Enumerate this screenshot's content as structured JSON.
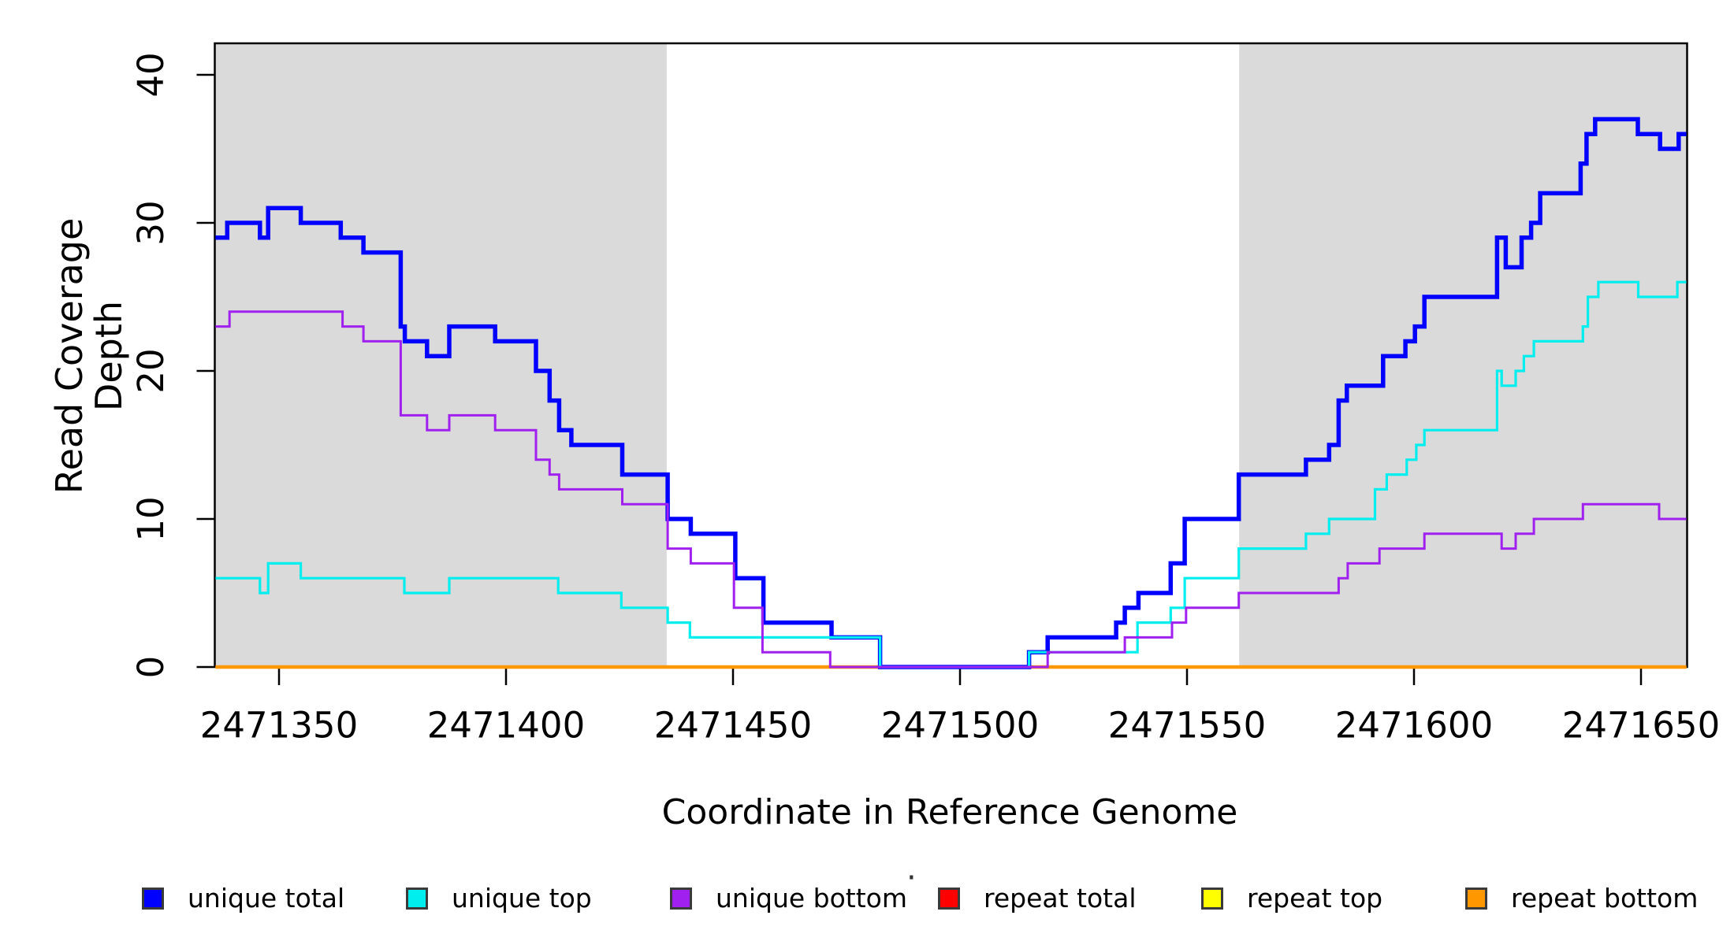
{
  "chart_data": {
    "type": "line",
    "subtype": "step-after",
    "xlabel": "Coordinate in Reference Genome",
    "ylabel": "Read Coverage Depth",
    "stray_dot": "·",
    "xlim": [
      2471336,
      2471660
    ],
    "ylim": [
      0,
      42
    ],
    "grid": false,
    "legend_position": "bottom",
    "x_ticks": [
      {
        "value": 2471350,
        "label": "2471350"
      },
      {
        "value": 2471400,
        "label": "2471400"
      },
      {
        "value": 2471450,
        "label": "2471450"
      },
      {
        "value": 2471500,
        "label": "2471500"
      },
      {
        "value": 2471550,
        "label": "2471550"
      },
      {
        "value": 2471600,
        "label": "2471600"
      },
      {
        "value": 2471650,
        "label": "2471650"
      }
    ],
    "y_ticks": [
      {
        "value": 0,
        "label": "0"
      },
      {
        "value": 10,
        "label": "10"
      },
      {
        "value": 20,
        "label": "20"
      },
      {
        "value": 30,
        "label": "30"
      },
      {
        "value": 40,
        "label": "40"
      }
    ],
    "shaded_regions": [
      {
        "x1": 2471336.0,
        "x2": 2471435.4,
        "color": "#DADADA"
      },
      {
        "x1": 2471561.5,
        "x2": 2471660.0,
        "color": "#DADADA"
      }
    ],
    "series": [
      {
        "name": "unique total",
        "color": "#0000FF",
        "width": 5.5,
        "points": [
          [
            2471336,
            29
          ],
          [
            2471338.6,
            30
          ],
          [
            2471345.8,
            29
          ],
          [
            2471347.6,
            31
          ],
          [
            2471354.8,
            30
          ],
          [
            2471363.6,
            29
          ],
          [
            2471368.6,
            28
          ],
          [
            2471376.8,
            23
          ],
          [
            2471377.7,
            22
          ],
          [
            2471382.6,
            21
          ],
          [
            2471387.5,
            23
          ],
          [
            2471397.6,
            22
          ],
          [
            2471406.6,
            20
          ],
          [
            2471409.6,
            18
          ],
          [
            2471411.7,
            16
          ],
          [
            2471414.4,
            15
          ],
          [
            2471425.6,
            13
          ],
          [
            2471435.6,
            10
          ],
          [
            2471440.7,
            9
          ],
          [
            2471450.5,
            6
          ],
          [
            2471456.7,
            3
          ],
          [
            2471471.7,
            2
          ],
          [
            2471482.4,
            0
          ],
          [
            2471515.2,
            1
          ],
          [
            2471519.3,
            2
          ],
          [
            2471534.4,
            3
          ],
          [
            2471536.3,
            4
          ],
          [
            2471539.3,
            5
          ],
          [
            2471546.4,
            7
          ],
          [
            2471549.5,
            10
          ],
          [
            2471561.4,
            13
          ],
          [
            2471576.2,
            14
          ],
          [
            2471581.3,
            15
          ],
          [
            2471583.4,
            18
          ],
          [
            2471585.2,
            19
          ],
          [
            2471593.2,
            21
          ],
          [
            2471598.1,
            22
          ],
          [
            2471600.2,
            23
          ],
          [
            2471602.3,
            25
          ],
          [
            2471618.3,
            29
          ],
          [
            2471620.2,
            27
          ],
          [
            2471623.7,
            29
          ],
          [
            2471625.8,
            30
          ],
          [
            2471627.8,
            32
          ],
          [
            2471636.7,
            34
          ],
          [
            2471638,
            36
          ],
          [
            2471639.9,
            37
          ],
          [
            2471649.3,
            36
          ],
          [
            2471654.2,
            35
          ],
          [
            2471658.3,
            36
          ]
        ]
      },
      {
        "name": "unique top",
        "color": "#00EEEE",
        "width": 3.2,
        "points": [
          [
            2471336,
            6
          ],
          [
            2471345.8,
            5
          ],
          [
            2471347.6,
            7
          ],
          [
            2471354.8,
            6
          ],
          [
            2471377.6,
            5
          ],
          [
            2471387.5,
            6
          ],
          [
            2471411.5,
            5
          ],
          [
            2471425.4,
            4
          ],
          [
            2471435.6,
            3
          ],
          [
            2471440.5,
            2
          ],
          [
            2471482.4,
            0
          ],
          [
            2471515.2,
            1
          ],
          [
            2471539.1,
            3
          ],
          [
            2471546.4,
            4
          ],
          [
            2471549.5,
            6
          ],
          [
            2471561.4,
            8
          ],
          [
            2471576.2,
            9
          ],
          [
            2471581.3,
            10
          ],
          [
            2471591.4,
            12
          ],
          [
            2471594,
            13
          ],
          [
            2471598.4,
            14
          ],
          [
            2471600.5,
            15
          ],
          [
            2471602.3,
            16
          ],
          [
            2471618.3,
            20
          ],
          [
            2471619.3,
            19
          ],
          [
            2471622.4,
            20
          ],
          [
            2471624.2,
            21
          ],
          [
            2471626.4,
            22
          ],
          [
            2471637.2,
            23
          ],
          [
            2471638.3,
            25
          ],
          [
            2471640.6,
            26
          ],
          [
            2471649.4,
            25
          ],
          [
            2471658,
            26
          ]
        ]
      },
      {
        "name": "unique bottom",
        "color": "#A020F0",
        "width": 3,
        "points": [
          [
            2471336,
            23
          ],
          [
            2471339.1,
            24
          ],
          [
            2471364,
            23
          ],
          [
            2471368.6,
            22
          ],
          [
            2471376.8,
            17
          ],
          [
            2471382.6,
            16
          ],
          [
            2471387.5,
            17
          ],
          [
            2471397.6,
            16
          ],
          [
            2471406.6,
            14
          ],
          [
            2471409.6,
            13
          ],
          [
            2471411.7,
            12
          ],
          [
            2471425.6,
            11
          ],
          [
            2471435.6,
            8
          ],
          [
            2471440.7,
            7
          ],
          [
            2471450.2,
            4
          ],
          [
            2471456.5,
            1
          ],
          [
            2471471.4,
            0
          ],
          [
            2471519.3,
            1
          ],
          [
            2471536.3,
            2
          ],
          [
            2471546.7,
            3
          ],
          [
            2471549.8,
            4
          ],
          [
            2471561.4,
            5
          ],
          [
            2471583.4,
            6
          ],
          [
            2471585.4,
            7
          ],
          [
            2471592.4,
            8
          ],
          [
            2471602.3,
            9
          ],
          [
            2471619.3,
            8
          ],
          [
            2471622.4,
            9
          ],
          [
            2471626.4,
            10
          ],
          [
            2471637.2,
            11
          ],
          [
            2471654,
            10
          ]
        ]
      },
      {
        "name": "repeat total",
        "color": "#FF0000",
        "width": 3,
        "points": [
          [
            2471336,
            0
          ]
        ]
      },
      {
        "name": "repeat top",
        "color": "#FFFF00",
        "width": 3,
        "points": [
          [
            2471336,
            0
          ]
        ]
      },
      {
        "name": "repeat bottom",
        "color": "#FF9800",
        "width": 4.5,
        "points": [
          [
            2471336,
            0
          ]
        ]
      }
    ],
    "draw_order": [
      3,
      4,
      5,
      0,
      1,
      2
    ]
  }
}
